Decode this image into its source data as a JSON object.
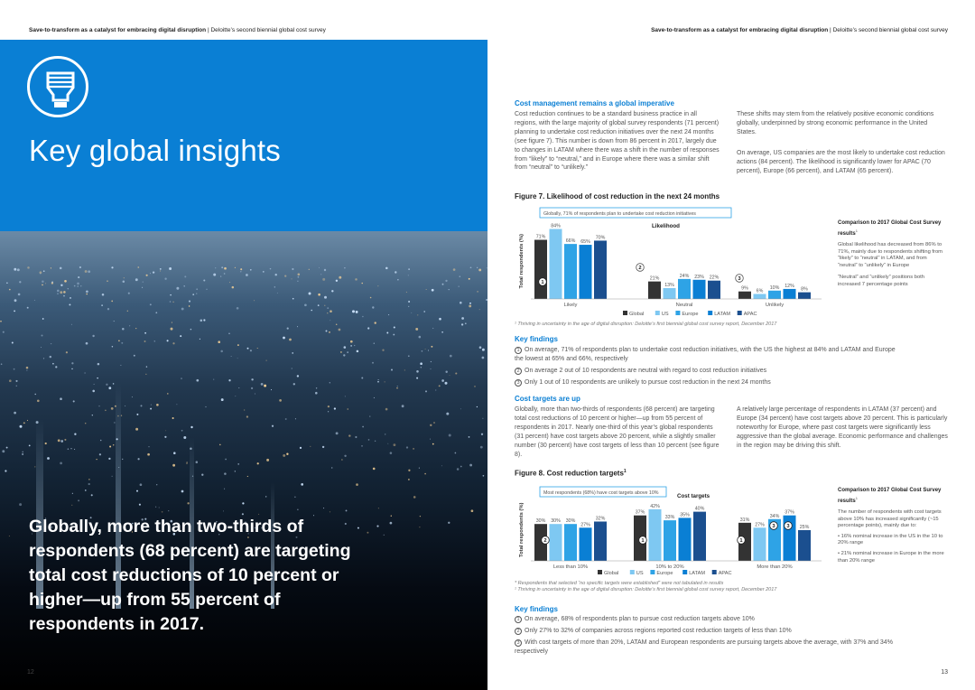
{
  "header": {
    "title_bold": "Save-to-transform as a catalyst for embracing digital disruption",
    "separator": "|",
    "subtitle": "Deloitte’s second biennial global cost survey"
  },
  "left": {
    "icon": "lightbulb-icon",
    "section_title": "Key global insights",
    "quote": "Globally, more than two-thirds of respondents (68 percent) are targeting total cost reductions of 10 percent or higher—up from 55 percent of respondents in 2017.",
    "page_number": "12"
  },
  "right": {
    "page_number": "13",
    "section1": {
      "heading": "Cost management remains a global imperative",
      "col1": "Cost reduction continues to be a standard business practice in all regions, with the large majority of global survey respondents (71 percent) planning to undertake cost reduction initiatives over the next 24 months (see figure 7). This number is down from 86 percent in 2017, largely due to changes in LATAM where there was a shift in the number of responses from “likely” to “neutral,” and in Europe where there was a similar shift from “neutral” to “unlikely.”",
      "col2a": "These shifts may stem from the relatively positive economic conditions globally, underpinned by strong economic performance in the United States.",
      "col2b": "On average, US companies are the most likely to undertake cost reduction actions (84 percent). The likelihood is significantly lower for APAC (70 percent), Europe (66 percent), and LATAM (65 percent)."
    },
    "figure7": {
      "caption": "Figure 7. Likelihood of cost reduction in the next 24 months",
      "callout": "Globally, 71% of respondents plan to undertake cost reduction initiatives",
      "comparison_title": "Comparison to 2017 Global Cost Survey results",
      "comparison_title_sup": "1",
      "comparison_p1": "Global likelihood has decreased from 86% to 71%, mainly due to respondents shifting from “likely” to “neutral” in LATAM, and from “neutral” to “unlikely” in Europe",
      "comparison_p2": "“Neutral” and “unlikely” positions both increased 7 percentage points",
      "footnote": "¹ Thriving in uncertainty in the age of digital disruption: Deloitte’s first biennial global cost survey report, December 2017",
      "key_findings_heading": "Key findings",
      "key_findings": [
        {
          "n": "1",
          "text": "On average, 71% of respondents plan to undertake cost reduction initiatives, with the US the highest at 84% and LATAM and Europe the lowest at 65% and 66%, respectively"
        },
        {
          "n": "2",
          "text": "On average 2 out of 10 respondents are neutral with regard to cost reduction initiatives"
        },
        {
          "n": "3",
          "text": "Only 1 out of 10 respondents are unlikely to pursue cost reduction in the next 24 months"
        }
      ]
    },
    "section2": {
      "heading": "Cost targets are up",
      "col1": "Globally, more than two-thirds of respondents (68 percent) are targeting total cost reductions of 10 percent or higher—up from 55 percent of respondents in 2017. Nearly one-third of this year’s global respondents (31 percent) have cost targets above 20 percent, while a slightly smaller number (30 percent) have cost targets of less than 10 percent (see figure 8).",
      "col2": "A relatively large percentage of respondents in LATAM (37 percent) and Europe (34 percent) have cost targets above 20 percent. This is particularly noteworthy for Europe, where past cost targets were significantly less aggressive than the global average. Economic performance and challenges in the region may be driving this shift."
    },
    "figure8": {
      "caption": "Figure 8. Cost reduction targets",
      "caption_sup": "1",
      "callout": "Most respondents (68%) have cost targets above 10%",
      "comparison_title": "Comparison to 2017 Global Cost Survey results",
      "comparison_title_sup": "1",
      "comparison_p1": "The number of respondents with cost targets above 10% has increased significantly (~15 percentage points), mainly due to:",
      "comparison_b1": "• 16% nominal increase in the US in the 10 to 20% range",
      "comparison_b2": "• 21% nominal increase in Europe in the more than 20% range",
      "footnote1": "* Respondents that selected “no specific targets were established” were not tabulated in results",
      "footnote2": "¹ Thriving in uncertainty in the age of digital disruption: Deloitte’s first biennial global cost survey report, December 2017",
      "key_findings_heading": "Key findings",
      "key_findings": [
        {
          "n": "1",
          "text": "On average, 68% of respondents plan to pursue cost reduction targets above 10%"
        },
        {
          "n": "2",
          "text": "Only 27% to 32% of companies across regions reported cost reduction targets of less than 10%"
        },
        {
          "n": "3",
          "text": "With cost targets of more than 20%, LATAM and European respondents are pursuing targets above the average, with 37% and 34% respectively"
        }
      ]
    }
  },
  "chart_data": [
    {
      "type": "bar",
      "title": "Likelihood",
      "ylabel": "Total respondents (%)",
      "categories": [
        "Likely",
        "Neutral",
        "Unlikely"
      ],
      "series": [
        {
          "name": "Global",
          "values": [
            71,
            21,
            9
          ]
        },
        {
          "name": "US",
          "values": [
            84,
            13,
            6
          ]
        },
        {
          "name": "Europe",
          "values": [
            66,
            24,
            10
          ]
        },
        {
          "name": "LATAM",
          "values": [
            65,
            23,
            12
          ]
        },
        {
          "name": "APAC",
          "values": [
            70,
            22,
            8
          ]
        }
      ],
      "annotations": [
        {
          "marker": "1",
          "category": "Likely"
        },
        {
          "marker": "2",
          "category": "Neutral"
        },
        {
          "marker": "3",
          "category": "Unlikely"
        }
      ],
      "colors": [
        "#333333",
        "#7ec8f2",
        "#2ea3e6",
        "#0a7fd4",
        "#1b4f8f"
      ],
      "legend": "bottom",
      "ylim": [
        0,
        90
      ]
    },
    {
      "type": "bar",
      "title": "Cost targets",
      "ylabel": "Total respondents (%)",
      "categories": [
        "Less than 10%",
        "10% to 20%",
        "More than 20%"
      ],
      "series": [
        {
          "name": "Global",
          "values": [
            30,
            37,
            31
          ]
        },
        {
          "name": "US",
          "values": [
            30,
            42,
            27
          ]
        },
        {
          "name": "Europe",
          "values": [
            30,
            33,
            34
          ]
        },
        {
          "name": "LATAM",
          "values": [
            27,
            35,
            37
          ]
        },
        {
          "name": "APAC",
          "values": [
            32,
            40,
            25
          ]
        }
      ],
      "annotations": [
        {
          "marker": "2",
          "category": "Less than 10%"
        },
        {
          "marker": "1",
          "category": "10% to 20%"
        },
        {
          "marker": "1",
          "category": "More than 20%"
        },
        {
          "marker": "3",
          "category": "More than 20%"
        },
        {
          "marker": "3",
          "category": "More than 20%"
        }
      ],
      "colors": [
        "#333333",
        "#7ec8f2",
        "#2ea3e6",
        "#0a7fd4",
        "#1b4f8f"
      ],
      "legend": "bottom",
      "ylim": [
        0,
        50
      ]
    }
  ]
}
